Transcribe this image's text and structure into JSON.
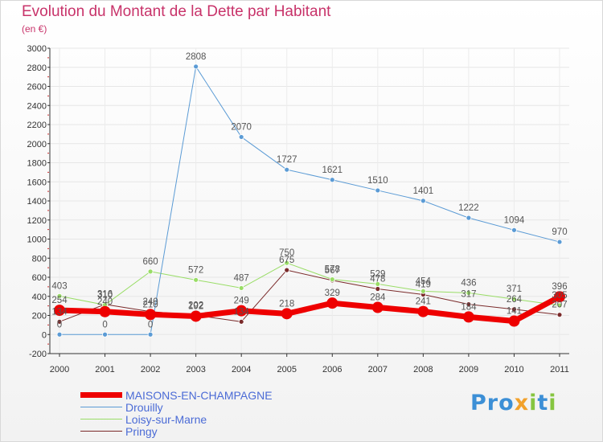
{
  "title": "Evolution du Montant de la Dette par Habitant",
  "subtitle": "(en €)",
  "logo": {
    "text": "Proxiti"
  },
  "chart_data": {
    "type": "line",
    "title": "Evolution du Montant de la Dette par Habitant",
    "ylabel": "(en €)",
    "xlabel": "",
    "ylim": [
      -200,
      3000
    ],
    "yticks": [
      -200,
      0,
      200,
      400,
      600,
      800,
      1000,
      1200,
      1400,
      1600,
      1800,
      2000,
      2200,
      2400,
      2600,
      2800,
      3000
    ],
    "categories": [
      "2000",
      "2001",
      "2002",
      "2003",
      "2004",
      "2005",
      "2006",
      "2007",
      "2008",
      "2009",
      "2010",
      "2011"
    ],
    "series": [
      {
        "name": "MAISONS-EN-CHAMPAGNE",
        "color": "#ee0000",
        "values": [
          254,
          240,
          210,
          192,
          249,
          218,
          329,
          284,
          241,
          184,
          141,
          396
        ]
      },
      {
        "name": "Drouilly",
        "color": "#5b9bd5",
        "values": [
          0,
          0,
          0,
          2808,
          2070,
          1727,
          1621,
          1510,
          1401,
          1222,
          1094,
          970
        ]
      },
      {
        "name": "Loisy-sur-Marne",
        "color": "#99dd66",
        "values": [
          403,
          310,
          660,
          572,
          487,
          750,
          578,
          529,
          454,
          436,
          371,
          305
        ]
      },
      {
        "name": "Pringy",
        "color": "#7a2a2a",
        "values": [
          134,
          316,
          240,
          202,
          134,
          675,
          567,
          478,
          419,
          317,
          264,
          207
        ]
      }
    ]
  }
}
